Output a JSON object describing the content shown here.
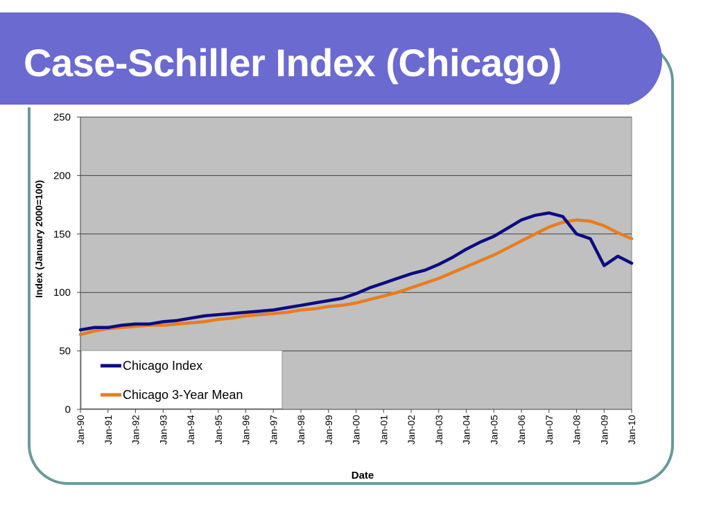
{
  "slide": {
    "title": "Case-Schiller Index (Chicago)"
  },
  "colors": {
    "title_bar": "#6a6ad0",
    "frame": "#6a9a9a",
    "plot_area": "#c0c0c0",
    "series_index": "#0c0c80",
    "series_mean": "#e87d1e"
  },
  "chart_data": {
    "type": "line",
    "title": "",
    "xlabel": "Date",
    "ylabel": "Index (January 2000=100)",
    "ylim": [
      0,
      250
    ],
    "yticks": [
      "0",
      "50",
      "100",
      "150",
      "200",
      "250"
    ],
    "xticks": [
      "Jan-90",
      "Jan-91",
      "Jan-92",
      "Jan-93",
      "Jan-94",
      "Jan-95",
      "Jan-96",
      "Jan-97",
      "Jan-98",
      "Jan-99",
      "Jan-00",
      "Jan-01",
      "Jan-02",
      "Jan-03",
      "Jan-04",
      "Jan-05",
      "Jan-06",
      "Jan-07",
      "Jan-08",
      "Jan-09",
      "Jan-10"
    ],
    "grid": "horizontal",
    "legend_position": "bottom-left inside plot",
    "x": [
      "Jan-90",
      "Jul-90",
      "Jan-91",
      "Jul-91",
      "Jan-92",
      "Jul-92",
      "Jan-93",
      "Jul-93",
      "Jan-94",
      "Jul-94",
      "Jan-95",
      "Jul-95",
      "Jan-96",
      "Jul-96",
      "Jan-97",
      "Jul-97",
      "Jan-98",
      "Jul-98",
      "Jan-99",
      "Jul-99",
      "Jan-00",
      "Jul-00",
      "Jan-01",
      "Jul-01",
      "Jan-02",
      "Jul-02",
      "Jan-03",
      "Jul-03",
      "Jan-04",
      "Jul-04",
      "Jan-05",
      "Jul-05",
      "Jan-06",
      "Jul-06",
      "Jan-07",
      "Jul-07",
      "Jan-08",
      "Jul-08",
      "Jan-09",
      "Jul-09",
      "Jan-10"
    ],
    "series": [
      {
        "name": "Chicago Index",
        "color": "#0c0c80",
        "values": [
          68,
          70,
          70,
          72,
          73,
          73,
          75,
          76,
          78,
          80,
          81,
          82,
          83,
          84,
          85,
          87,
          89,
          91,
          93,
          95,
          99,
          104,
          108,
          112,
          116,
          119,
          124,
          130,
          137,
          143,
          148,
          155,
          162,
          166,
          168,
          165,
          150,
          146,
          123,
          131,
          125
        ]
      },
      {
        "name": "Chicago 3-Year Mean",
        "color": "#e87d1e",
        "values": [
          64,
          67,
          69,
          70,
          71,
          72,
          72,
          73,
          74,
          75,
          77,
          78,
          80,
          81,
          82,
          83,
          85,
          86,
          88,
          89,
          91,
          94,
          97,
          100,
          104,
          108,
          112,
          117,
          122,
          127,
          132,
          138,
          144,
          150,
          156,
          160,
          162,
          161,
          157,
          151,
          146
        ]
      }
    ]
  }
}
